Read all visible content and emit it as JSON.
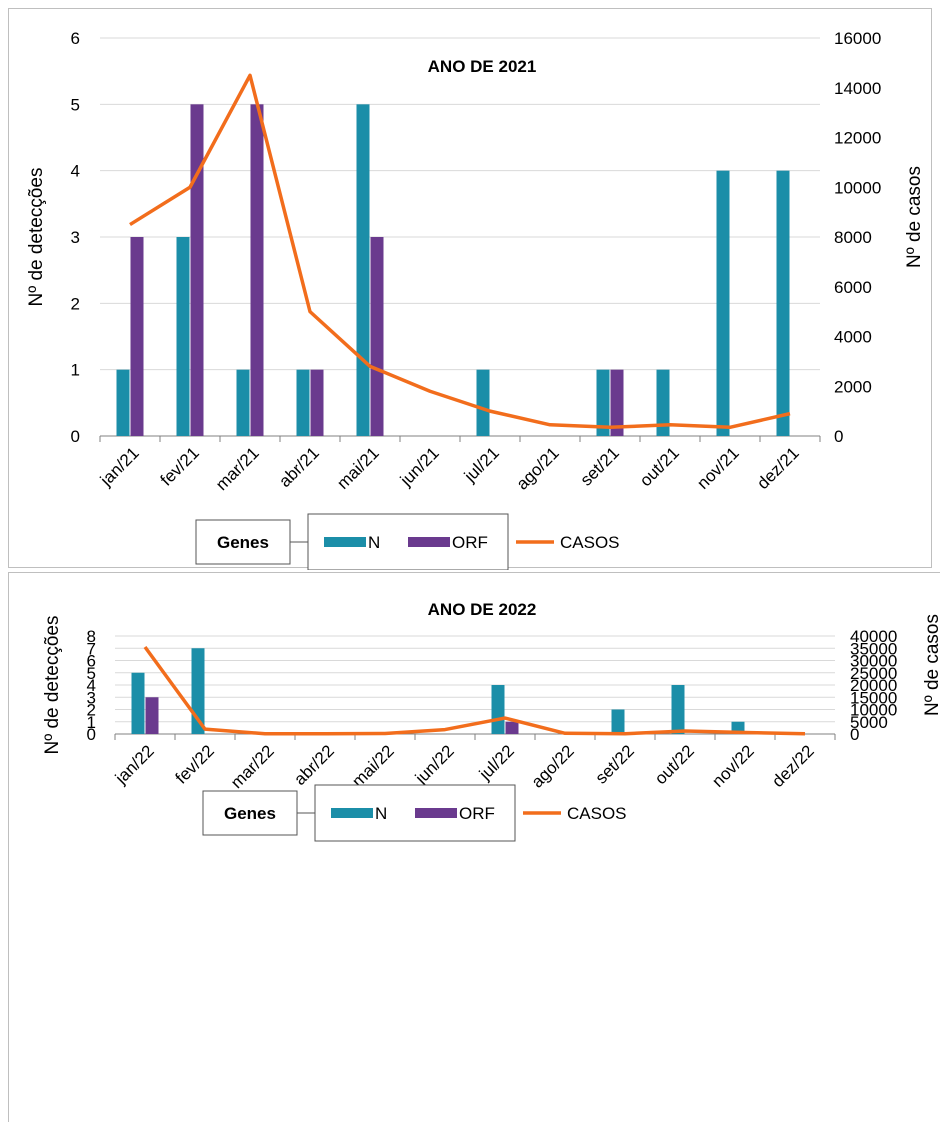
{
  "colors": {
    "N": "#1b8ea8",
    "ORF": "#6a3a8e",
    "CASOS": "#f26d1c",
    "grid": "#d9d9d9",
    "axis": "#808080"
  },
  "legend": {
    "box_label": "Genes",
    "items": [
      "N",
      "ORF",
      "CASOS"
    ]
  },
  "chart_data": [
    {
      "type": "bar",
      "title": "ANO DE 2021",
      "ylabel": "Nº de detecções",
      "y2label": "Nº de casos",
      "categories": [
        "jan/21",
        "fev/21",
        "mar/21",
        "abr/21",
        "mai/21",
        "jun/21",
        "jul/21",
        "ago/21",
        "set/21",
        "out/21",
        "nov/21",
        "dez/21"
      ],
      "ylim": [
        0,
        6
      ],
      "y2lim": [
        0,
        16000
      ],
      "yticks": [
        "0",
        "1",
        "2",
        "3",
        "4",
        "5",
        "6"
      ],
      "y2ticks": [
        "0",
        "2000",
        "4000",
        "6000",
        "8000",
        "10000",
        "12000",
        "14000",
        "16000"
      ],
      "series": [
        {
          "name": "N",
          "kind": "bar",
          "values": [
            1,
            3,
            1,
            1,
            5,
            0,
            1,
            0,
            1,
            1,
            4,
            4
          ]
        },
        {
          "name": "ORF",
          "kind": "bar",
          "values": [
            3,
            5,
            5,
            1,
            3,
            0,
            0,
            0,
            1,
            0,
            0,
            0
          ]
        },
        {
          "name": "CASOS",
          "kind": "line",
          "axis": "right",
          "values": [
            8500,
            10000,
            14500,
            5000,
            2800,
            1800,
            1000,
            450,
            350,
            450,
            350,
            900
          ]
        }
      ],
      "legend_position": "bottom"
    },
    {
      "type": "bar",
      "title": "ANO DE 2022",
      "ylabel": "Nº de detecções",
      "y2label": "Nº de casos",
      "categories": [
        "jan/22",
        "fev/22",
        "mar/22",
        "abr/22",
        "mai/22",
        "jun/22",
        "jul/22",
        "ago/22",
        "set/22",
        "out/22",
        "nov/22",
        "dez/22"
      ],
      "ylim": [
        0,
        8
      ],
      "y2lim": [
        0,
        40000
      ],
      "yticks": [
        "0",
        "1",
        "2",
        "3",
        "4",
        "5",
        "6",
        "7",
        "8"
      ],
      "y2ticks": [
        "0",
        "5000",
        "10000",
        "15000",
        "20000",
        "25000",
        "30000",
        "35000",
        "40000"
      ],
      "series": [
        {
          "name": "N",
          "kind": "bar",
          "values": [
            5,
            7,
            0,
            0,
            0,
            0,
            4,
            0,
            2,
            4,
            1,
            0
          ]
        },
        {
          "name": "ORF",
          "kind": "bar",
          "values": [
            3,
            0,
            0,
            0,
            0,
            0,
            1,
            0,
            0,
            0,
            0,
            0
          ]
        },
        {
          "name": "CASOS",
          "kind": "line",
          "axis": "right",
          "values": [
            35500,
            2000,
            100,
            100,
            200,
            1800,
            6500,
            300,
            100,
            1200,
            600,
            100
          ]
        }
      ],
      "legend_position": "bottom"
    }
  ]
}
